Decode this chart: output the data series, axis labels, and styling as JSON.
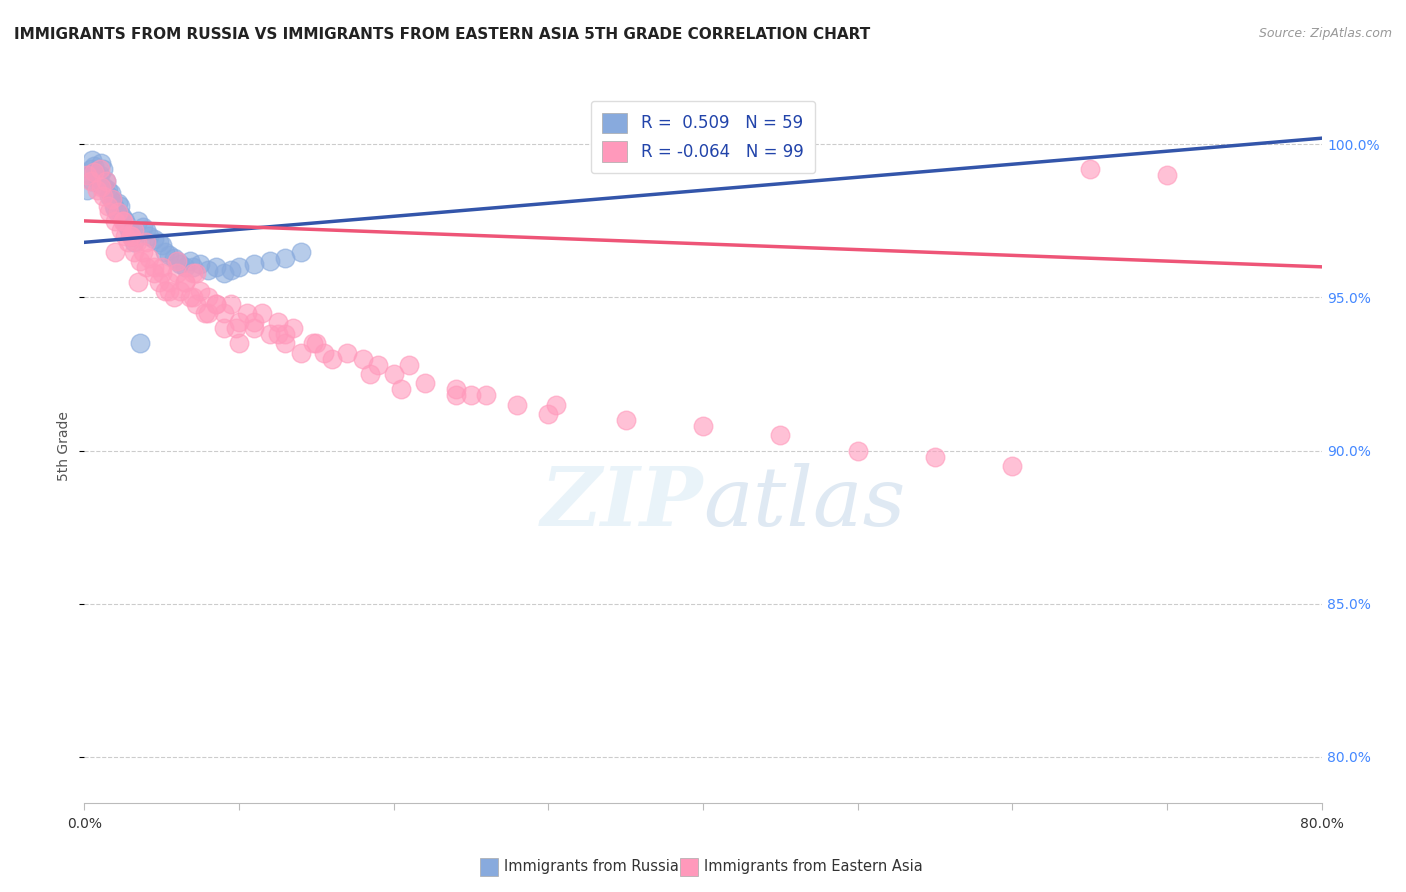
{
  "title": "IMMIGRANTS FROM RUSSIA VS IMMIGRANTS FROM EASTERN ASIA 5TH GRADE CORRELATION CHART",
  "source": "Source: ZipAtlas.com",
  "ylabel": "5th Grade",
  "y_ticks": [
    80.0,
    85.0,
    90.0,
    95.0,
    100.0
  ],
  "x_min": 0.0,
  "x_max": 80.0,
  "y_min": 78.5,
  "y_max": 101.8,
  "legend_russia_R": "0.509",
  "legend_russia_N": "59",
  "legend_asia_R": "-0.064",
  "legend_asia_N": "99",
  "legend_label_russia": "Immigrants from Russia",
  "legend_label_asia": "Immigrants from Eastern Asia",
  "russia_color": "#88AADD",
  "asia_color": "#FF99BB",
  "russia_line_color": "#3355AA",
  "asia_line_color": "#EE5577",
  "russia_scatter_x": [
    0.2,
    0.3,
    0.4,
    0.5,
    0.5,
    0.6,
    0.7,
    0.8,
    0.9,
    1.0,
    1.0,
    1.1,
    1.2,
    1.3,
    1.4,
    1.5,
    1.6,
    1.7,
    1.8,
    1.9,
    2.0,
    2.1,
    2.2,
    2.3,
    2.4,
    2.5,
    2.6,
    2.7,
    2.8,
    2.9,
    3.0,
    3.1,
    3.2,
    3.5,
    3.8,
    4.0,
    4.2,
    4.5,
    4.8,
    5.0,
    5.2,
    5.5,
    5.8,
    6.0,
    6.2,
    6.5,
    6.8,
    7.0,
    7.5,
    8.0,
    8.5,
    9.0,
    9.5,
    10.0,
    11.0,
    12.0,
    13.0,
    14.0,
    3.6
  ],
  "russia_scatter_y": [
    98.5,
    99.0,
    99.2,
    99.5,
    98.8,
    99.3,
    99.1,
    99.0,
    98.9,
    98.7,
    99.0,
    99.4,
    99.2,
    98.6,
    98.8,
    98.5,
    98.3,
    98.4,
    98.2,
    98.0,
    97.9,
    97.8,
    98.1,
    98.0,
    97.7,
    97.6,
    97.5,
    97.4,
    97.3,
    97.2,
    97.1,
    97.0,
    96.8,
    97.5,
    97.3,
    97.2,
    97.0,
    96.9,
    96.8,
    96.7,
    96.5,
    96.4,
    96.3,
    96.2,
    96.1,
    96.0,
    96.2,
    96.0,
    96.1,
    95.9,
    96.0,
    95.8,
    95.9,
    96.0,
    96.1,
    96.2,
    96.3,
    96.5,
    93.5
  ],
  "asia_scatter_x": [
    0.2,
    0.4,
    0.6,
    0.8,
    1.0,
    1.1,
    1.2,
    1.4,
    1.5,
    1.6,
    1.8,
    2.0,
    2.2,
    2.4,
    2.5,
    2.6,
    2.8,
    3.0,
    3.2,
    3.4,
    3.6,
    3.8,
    4.0,
    4.2,
    4.5,
    4.8,
    5.0,
    5.2,
    5.5,
    5.8,
    6.0,
    6.2,
    6.5,
    6.8,
    7.0,
    7.2,
    7.5,
    7.8,
    8.0,
    8.5,
    9.0,
    9.5,
    10.0,
    10.5,
    11.0,
    11.5,
    12.0,
    12.5,
    13.0,
    13.5,
    14.0,
    15.0,
    16.0,
    17.0,
    18.0,
    19.0,
    20.0,
    22.0,
    24.0,
    26.0,
    28.0,
    30.0,
    35.0,
    40.0,
    45.0,
    50.0,
    55.0,
    60.0,
    65.0,
    70.0,
    2.0,
    3.5,
    4.0,
    5.0,
    6.0,
    7.0,
    8.0,
    9.0,
    10.0,
    3.0,
    2.5,
    4.5,
    6.5,
    8.5,
    11.0,
    13.0,
    15.5,
    18.5,
    21.0,
    25.0,
    3.2,
    5.5,
    7.2,
    9.8,
    12.5,
    14.8,
    20.5,
    24.0,
    30.5
  ],
  "asia_scatter_y": [
    99.0,
    98.8,
    99.1,
    98.5,
    99.2,
    98.6,
    98.3,
    98.8,
    98.0,
    97.8,
    98.2,
    97.5,
    97.8,
    97.2,
    97.5,
    97.0,
    96.8,
    97.0,
    96.5,
    96.8,
    96.2,
    96.5,
    96.0,
    96.3,
    95.8,
    95.5,
    96.0,
    95.2,
    95.5,
    95.0,
    95.8,
    95.2,
    95.5,
    95.0,
    95.8,
    94.8,
    95.2,
    94.5,
    95.0,
    94.8,
    94.5,
    94.8,
    94.2,
    94.5,
    94.0,
    94.5,
    93.8,
    94.2,
    93.5,
    94.0,
    93.2,
    93.5,
    93.0,
    93.2,
    93.0,
    92.8,
    92.5,
    92.2,
    92.0,
    91.8,
    91.5,
    91.2,
    91.0,
    90.8,
    90.5,
    90.0,
    89.8,
    89.5,
    99.2,
    99.0,
    96.5,
    95.5,
    96.8,
    95.8,
    96.2,
    95.0,
    94.5,
    94.0,
    93.5,
    97.0,
    97.5,
    96.0,
    95.5,
    94.8,
    94.2,
    93.8,
    93.2,
    92.5,
    92.8,
    91.8,
    97.2,
    95.2,
    95.8,
    94.0,
    93.8,
    93.5,
    92.0,
    91.8,
    91.5
  ]
}
